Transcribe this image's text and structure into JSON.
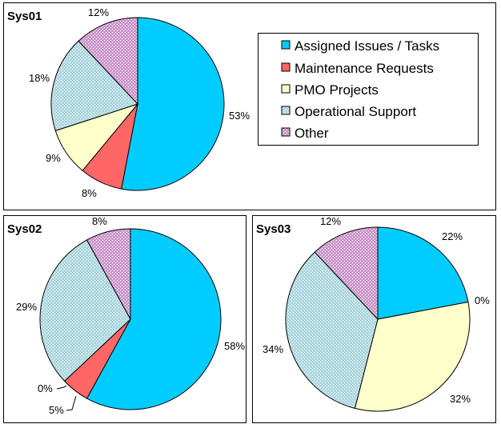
{
  "chart_data": [
    {
      "type": "pie",
      "title": "Sys01",
      "categories": [
        "Assigned Issues / Tasks",
        "Maintenance Requests",
        "PMO Projects",
        "Operational Support",
        "Other"
      ],
      "values": [
        53,
        8,
        9,
        18,
        12
      ],
      "labels": [
        "53%",
        "8%",
        "9%",
        "18%",
        "12%"
      ]
    },
    {
      "type": "pie",
      "title": "Sys02",
      "categories": [
        "Assigned Issues / Tasks",
        "Maintenance Requests",
        "PMO Projects",
        "Operational Support",
        "Other"
      ],
      "values": [
        58,
        5,
        0,
        29,
        8
      ],
      "labels": [
        "58%",
        "5%",
        "0%",
        "29%",
        "8%"
      ]
    },
    {
      "type": "pie",
      "title": "Sys03",
      "categories": [
        "Assigned Issues / Tasks",
        "Maintenance Requests",
        "PMO Projects",
        "Operational Support",
        "Other"
      ],
      "values": [
        22,
        0,
        32,
        34,
        12
      ],
      "labels": [
        "22%",
        "0%",
        "32%",
        "34%",
        "12%"
      ]
    }
  ],
  "legend": {
    "placement": "top-right",
    "items": [
      {
        "label": "Assigned Issues / Tasks",
        "color": "#00ccff"
      },
      {
        "label": "Maintenance Requests",
        "color": "#ff6666"
      },
      {
        "label": "PMO Projects",
        "color": "#ffffcc"
      },
      {
        "label": "Operational Support",
        "color": "#b0d8e0"
      },
      {
        "label": "Other",
        "color": "#cc99cc"
      }
    ]
  }
}
